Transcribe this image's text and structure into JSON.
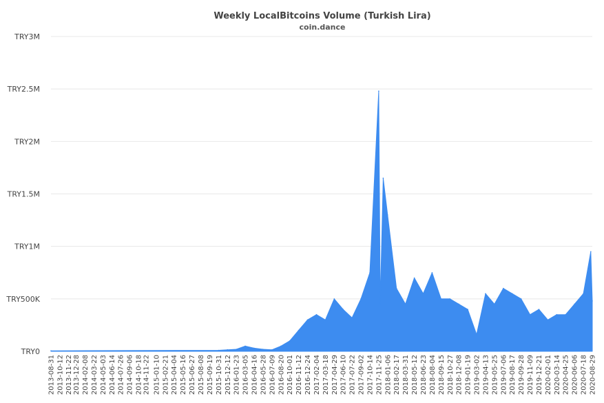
{
  "chart_data": {
    "type": "area",
    "title": "Weekly LocalBitcoins Volume (Turkish Lira)",
    "subtitle": "coin.dance",
    "xlabel": "",
    "ylabel": "",
    "ylim": [
      0,
      3000000
    ],
    "grid": true,
    "legend": "none",
    "colors": {
      "series": "#3d8cf0",
      "grid": "#e8e8e8",
      "text": "#444444"
    },
    "y_ticks": [
      {
        "value": 0,
        "label": "TRY0"
      },
      {
        "value": 500000,
        "label": "TRY500K"
      },
      {
        "value": 1000000,
        "label": "TRY1M"
      },
      {
        "value": 1500000,
        "label": "TRY1.5M"
      },
      {
        "value": 2000000,
        "label": "TRY2M"
      },
      {
        "value": 2500000,
        "label": "TRY2.5M"
      },
      {
        "value": 3000000,
        "label": "TRY3M"
      }
    ],
    "x_tick_labels": [
      "2013-08-31",
      "2013-10-12",
      "2013-11-22",
      "2013-12-28",
      "2014-02-08",
      "2014-03-22",
      "2014-05-03",
      "2014-06-14",
      "2014-07-26",
      "2014-09-06",
      "2014-10-18",
      "2014-11-22",
      "2015-01-10",
      "2015-02-21",
      "2015-04-04",
      "2015-05-16",
      "2015-06-27",
      "2015-08-08",
      "2015-09-19",
      "2015-10-31",
      "2015-12-12",
      "2016-01-23",
      "2016-03-05",
      "2016-04-16",
      "2016-05-28",
      "2016-07-09",
      "2016-08-20",
      "2016-10-01",
      "2016-11-12",
      "2016-12-24",
      "2017-02-04",
      "2017-03-18",
      "2017-04-29",
      "2017-06-10",
      "2017-07-22",
      "2017-09-02",
      "2017-10-14",
      "2017-11-25",
      "2018-01-06",
      "2018-02-17",
      "2018-03-31",
      "2018-05-12",
      "2018-06-23",
      "2018-08-04",
      "2018-09-15",
      "2018-10-27",
      "2018-12-08",
      "2019-01-19",
      "2019-03-02",
      "2019-04-13",
      "2019-05-25",
      "2019-07-06",
      "2019-08-17",
      "2019-09-28",
      "2019-11-09",
      "2019-12-21",
      "2020-02-01",
      "2020-03-14",
      "2020-04-25",
      "2020-06-06",
      "2020-07-18",
      "2020-08-29"
    ],
    "series": [
      {
        "x": [
          "2013-08-31",
          "2015-10-31",
          "2015-12-12",
          "2016-01-23",
          "2016-03-05",
          "2016-04-16",
          "2016-05-28",
          "2016-07-09",
          "2016-08-20",
          "2016-10-01",
          "2016-11-12",
          "2016-12-24",
          "2017-02-04",
          "2017-03-18",
          "2017-04-29",
          "2017-06-10",
          "2017-07-22",
          "2017-09-02",
          "2017-10-14",
          "2017-11-25",
          "2017-12-02",
          "2017-12-16",
          "2018-01-06",
          "2018-02-17",
          "2018-03-31",
          "2018-05-12",
          "2018-06-23",
          "2018-08-04",
          "2018-09-15",
          "2018-10-27",
          "2018-12-08",
          "2019-01-19",
          "2019-03-02",
          "2019-04-13",
          "2019-05-25",
          "2019-07-06",
          "2019-08-17",
          "2019-09-28",
          "2019-11-09",
          "2019-12-21",
          "2020-02-01",
          "2020-03-14",
          "2020-04-25",
          "2020-06-06",
          "2020-07-18",
          "2020-08-22",
          "2020-08-29"
        ],
        "y": [
          5000,
          10000,
          15000,
          20000,
          50000,
          30000,
          20000,
          15000,
          50000,
          100000,
          200000,
          300000,
          350000,
          300000,
          500000,
          400000,
          320000,
          500000,
          750000,
          2480000,
          450000,
          1650000,
          1300000,
          600000,
          450000,
          700000,
          550000,
          750000,
          500000,
          500000,
          450000,
          400000,
          160000,
          550000,
          450000,
          600000,
          550000,
          500000,
          350000,
          400000,
          300000,
          350000,
          350000,
          450000,
          550000,
          950000,
          480000
        ]
      }
    ]
  }
}
